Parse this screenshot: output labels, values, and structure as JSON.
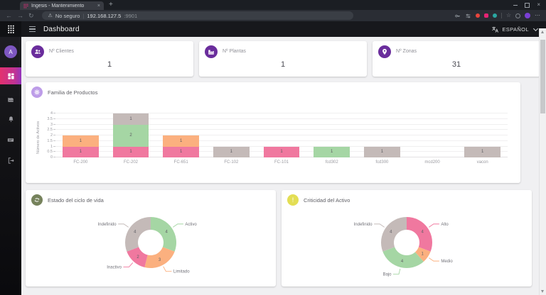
{
  "browser": {
    "tab_title": "Ingesis - Mantenimiento",
    "tab_close_glyph": "×",
    "new_tab_glyph": "+",
    "close_window_glyph": "×",
    "back_glyph": "←",
    "forward_glyph": "→",
    "reload_glyph": "↻",
    "warning_glyph": "⚠",
    "warning_text": "No seguro",
    "address_divider": "|",
    "url_host": "192.168.127.5",
    "url_port": ":9901",
    "favorites_glyph": "☆",
    "menu_glyph": "⋯"
  },
  "header": {
    "title": "Dashboard",
    "language_label": "ESPAÑOL"
  },
  "sidebar": {
    "avatar_letter": "A"
  },
  "stats": [
    {
      "label": "Nº Clientes",
      "value": "1",
      "icon": "users-icon"
    },
    {
      "label": "Nº Plantas",
      "value": "1",
      "icon": "factory-icon"
    },
    {
      "label": "Nº Zonas",
      "value": "31",
      "icon": "map-pin-icon"
    }
  ],
  "colors": {
    "stat_icon_bg": "#6a2d9c",
    "bar_card_icon_bg": "#bd9ce8",
    "lifecycle_icon_bg": "#76825c",
    "criticality_icon_bg": "#e3de54",
    "sidebar_active": "#e3316f",
    "pink": "#f0789f",
    "orange": "#fbb07f",
    "green": "#a5d6a4",
    "gray": "#c4bab8"
  },
  "chart_data": [
    {
      "type": "bar",
      "stacked": true,
      "title": "Familia de Productos",
      "ylabel": "Número de Activos",
      "xlabel": "",
      "ylim": [
        0,
        4
      ],
      "yticks": [
        0,
        0.5,
        1,
        1.5,
        2,
        2.5,
        3,
        3.5,
        4
      ],
      "grid": true,
      "legend": "none",
      "categories": [
        "FC-200",
        "FC-202",
        "FC-651",
        "FC-102",
        "FC-101",
        "fcd302",
        "fcd300",
        "mcd200",
        "vacon"
      ],
      "series": [
        {
          "name": "pink",
          "color": "#f0789f",
          "values": [
            1,
            1,
            1,
            0,
            1,
            0,
            0,
            0,
            0
          ]
        },
        {
          "name": "green",
          "color": "#a5d6a4",
          "values": [
            0,
            2,
            0,
            0,
            0,
            1,
            0,
            0,
            0
          ]
        },
        {
          "name": "orange",
          "color": "#fbb07f",
          "values": [
            1,
            0,
            1,
            0,
            0,
            0,
            0,
            0,
            0
          ]
        },
        {
          "name": "gray",
          "color": "#c4bab8",
          "values": [
            0,
            1,
            0,
            1,
            0,
            0,
            1,
            0,
            1
          ]
        }
      ]
    },
    {
      "type": "pie",
      "donut": true,
      "title": "Estado del ciclo de vida",
      "legend": "outside-labels",
      "segments": [
        {
          "label": "Activo",
          "value": 4,
          "color": "#a5d6a4"
        },
        {
          "label": "Limitado",
          "value": 3,
          "color": "#fbb07f"
        },
        {
          "label": "Inactivo",
          "value": 2,
          "color": "#f0789f"
        },
        {
          "label": "Indefinido",
          "value": 4,
          "color": "#c4bab8"
        }
      ]
    },
    {
      "type": "pie",
      "donut": true,
      "title": "Criticidad del Activo",
      "legend": "outside-labels",
      "segments": [
        {
          "label": "Alto",
          "value": 4,
          "color": "#f0789f"
        },
        {
          "label": "Medio",
          "value": 1,
          "color": "#fbb07f"
        },
        {
          "label": "Bajo",
          "value": 4,
          "color": "#a5d6a4"
        },
        {
          "label": "Indefinido",
          "value": 4,
          "color": "#c4bab8"
        }
      ]
    }
  ]
}
